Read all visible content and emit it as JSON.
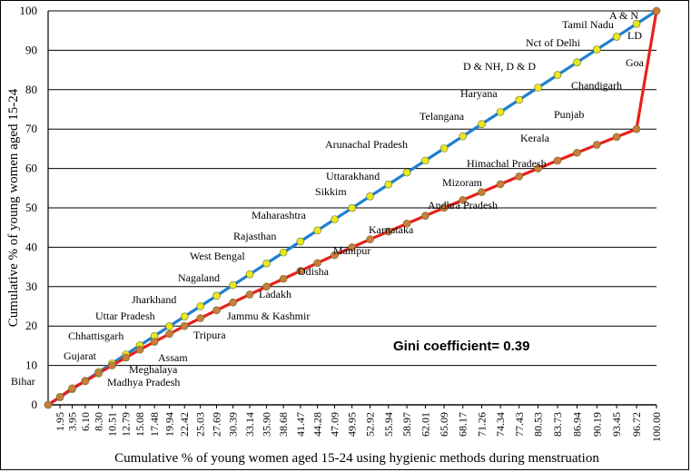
{
  "chart_data": {
    "type": "line",
    "title": "",
    "xlabel": "Cumulative % of young women aged 15-24 using hygienic methods during menstruation",
    "ylabel": "Cumulative % of young women aged 15-24",
    "ylim": [
      0,
      100
    ],
    "yticks": [
      0,
      10,
      20,
      30,
      40,
      50,
      60,
      70,
      80,
      90,
      100
    ],
    "grid": "horizontal",
    "annotation": "Gini coefficient= 0.39",
    "x_tick_labels": [
      "1.95",
      "3.95",
      "6.10",
      "8.30",
      "10.51",
      "12.79",
      "15.08",
      "17.48",
      "19.94",
      "22.42",
      "25.03",
      "27.69",
      "30.39",
      "33.14",
      "35.90",
      "38.68",
      "41.47",
      "44.28",
      "47.09",
      "49.95",
      "52.92",
      "55.94",
      "58.97",
      "62.01",
      "65.09",
      "68.17",
      "71.26",
      "74.34",
      "77.43",
      "80.53",
      "83.73",
      "86.94",
      "90.19",
      "93.45",
      "96.72",
      "100.00"
    ],
    "series": [
      {
        "color": "#1f7fcf",
        "marker_color": "#e8e820",
        "x": [
          0,
          1.95,
          3.95,
          6.1,
          8.3,
          10.51,
          12.79,
          15.08,
          17.48,
          19.94,
          22.42,
          25.03,
          27.69,
          30.39,
          33.14,
          35.9,
          38.68,
          41.47,
          44.28,
          47.09,
          49.95,
          52.92,
          55.94,
          58.97,
          62.01,
          65.09,
          68.17,
          71.26,
          74.34,
          77.43,
          80.53,
          83.73,
          86.94,
          90.19,
          93.45,
          96.72,
          100.0
        ],
        "y": [
          0,
          1.95,
          3.95,
          6.1,
          8.3,
          10.51,
          12.79,
          15.08,
          17.48,
          19.94,
          22.42,
          25.03,
          27.69,
          30.39,
          33.14,
          35.9,
          38.68,
          41.47,
          44.28,
          47.09,
          49.95,
          52.92,
          55.94,
          58.97,
          62.01,
          65.09,
          68.17,
          71.26,
          74.34,
          77.43,
          80.53,
          83.73,
          86.94,
          90.19,
          93.45,
          96.72,
          100.0
        ]
      },
      {
        "color": "#e8201a",
        "marker_color": "#c87d3c",
        "x": [
          0,
          1.95,
          3.95,
          6.1,
          8.3,
          10.51,
          12.79,
          15.08,
          17.48,
          19.94,
          22.42,
          25.03,
          27.69,
          30.39,
          33.14,
          35.9,
          38.68,
          41.47,
          44.28,
          47.09,
          49.95,
          52.92,
          55.94,
          58.97,
          62.01,
          65.09,
          68.17,
          71.26,
          74.34,
          77.43,
          80.53,
          83.73,
          86.94,
          90.19,
          93.45,
          96.72,
          100.0
        ],
        "y": [
          0,
          2.0,
          4.2,
          6.0,
          8.0,
          10.0,
          12.0,
          14.0,
          16.0,
          18.0,
          20.0,
          22.0,
          24.0,
          26.0,
          28.0,
          30.0,
          32.0,
          34.0,
          36.0,
          38.0,
          40.0,
          42.0,
          44.0,
          46.0,
          48.0,
          50.0,
          52.0,
          54.0,
          56.0,
          58.0,
          60.0,
          62.0,
          64.0,
          66.0,
          68.0,
          70.0,
          100.0
        ]
      }
    ],
    "state_labels": [
      {
        "text": "Bihar"
      },
      {
        "text": "Gujarat"
      },
      {
        "text": "Chhattisgarh"
      },
      {
        "text": "Uttar Pradesh"
      },
      {
        "text": "Jharkhand"
      },
      {
        "text": "Nagaland"
      },
      {
        "text": "West Bengal"
      },
      {
        "text": "Rajasthan"
      },
      {
        "text": "Maharashtra"
      },
      {
        "text": "Sikkim"
      },
      {
        "text": "Uttarakhand"
      },
      {
        "text": "Arunachal Pradesh"
      },
      {
        "text": "Telangana"
      },
      {
        "text": "Haryana"
      },
      {
        "text": "D & NH, D & D"
      },
      {
        "text": "Nct of Delhi"
      },
      {
        "text": "Tamil Nadu"
      },
      {
        "text": "A & N"
      },
      {
        "text": "LD"
      },
      {
        "text": "Goa"
      },
      {
        "text": "Chandigarh"
      },
      {
        "text": "Punjab"
      },
      {
        "text": "Kerala"
      },
      {
        "text": "Himachal Pradesh"
      },
      {
        "text": "Mizoram"
      },
      {
        "text": "Andhra Pradesh"
      },
      {
        "text": "Karnataka"
      },
      {
        "text": "Manipur"
      },
      {
        "text": "Odisha"
      },
      {
        "text": "Ladakh"
      },
      {
        "text": "Jammu & Kashmir"
      },
      {
        "text": "Tripura"
      },
      {
        "text": "Assam"
      },
      {
        "text": "Meghalaya"
      },
      {
        "text": "Madhya Pradesh"
      }
    ]
  }
}
